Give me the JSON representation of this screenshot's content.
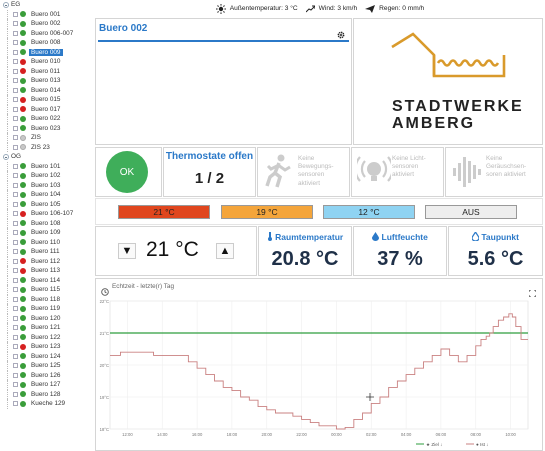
{
  "sidebar": {
    "groups": [
      {
        "label": "EG",
        "items": [
          {
            "label": "Buero 001",
            "status": "green"
          },
          {
            "label": "Buero 002",
            "status": "green"
          },
          {
            "label": "Buero 006-007",
            "status": "green"
          },
          {
            "label": "Buero 008",
            "status": "green"
          },
          {
            "label": "Buero 009",
            "status": "green",
            "selected": true
          },
          {
            "label": "Buero 010",
            "status": "red"
          },
          {
            "label": "Buero 011",
            "status": "red"
          },
          {
            "label": "Buero 013",
            "status": "green"
          },
          {
            "label": "Buero 014",
            "status": "green"
          },
          {
            "label": "Buero 015",
            "status": "red"
          },
          {
            "label": "Buero 017",
            "status": "red"
          },
          {
            "label": "Buero 022",
            "status": "green"
          },
          {
            "label": "Buero 023",
            "status": "green"
          },
          {
            "label": "ZIS",
            "status": "gray"
          },
          {
            "label": "ZIS 23",
            "status": "gray"
          }
        ]
      },
      {
        "label": "OG",
        "items": [
          {
            "label": "Buero 101",
            "status": "green"
          },
          {
            "label": "Buero 102",
            "status": "green"
          },
          {
            "label": "Buero 103",
            "status": "green"
          },
          {
            "label": "Buero 104",
            "status": "green"
          },
          {
            "label": "Buero 105",
            "status": "green"
          },
          {
            "label": "Buero 106-107",
            "status": "red"
          },
          {
            "label": "Buero 108",
            "status": "green"
          },
          {
            "label": "Buero 109",
            "status": "green"
          },
          {
            "label": "Buero 110",
            "status": "green"
          },
          {
            "label": "Buero 111",
            "status": "green"
          },
          {
            "label": "Buero 112",
            "status": "red"
          },
          {
            "label": "Buero 113",
            "status": "red"
          },
          {
            "label": "Buero 114",
            "status": "green"
          },
          {
            "label": "Buero 115",
            "status": "green"
          },
          {
            "label": "Buero 118",
            "status": "green"
          },
          {
            "label": "Buero 119",
            "status": "green"
          },
          {
            "label": "Buero 120",
            "status": "green"
          },
          {
            "label": "Buero 121",
            "status": "green"
          },
          {
            "label": "Buero 122",
            "status": "green"
          },
          {
            "label": "Buero 123",
            "status": "red"
          },
          {
            "label": "Buero 124",
            "status": "green"
          },
          {
            "label": "Buero 125",
            "status": "green"
          },
          {
            "label": "Buero 126",
            "status": "green"
          },
          {
            "label": "Buero 127",
            "status": "green"
          },
          {
            "label": "Buero 128",
            "status": "green"
          },
          {
            "label": "Kueche 129",
            "status": "green"
          }
        ]
      }
    ]
  },
  "topbar": {
    "outside_temp": "Außentemperatur: 3 °C",
    "wind": "Wind: 3 km/h",
    "rain": "Regen: 0 mm/h"
  },
  "room": {
    "title": "Buero 002"
  },
  "logo": {
    "line1": "STADTWERKE",
    "line2": "AMBERG"
  },
  "status": {
    "ok_label": "OK",
    "thermo_title": "Thermostate offen",
    "thermo_value": "1 / 2",
    "sensors": [
      {
        "caption_lines": [
          "Keine",
          "Bewegungs-",
          "sensoren",
          "aktiviert"
        ],
        "icon": "motion-icon"
      },
      {
        "caption_lines": [
          "Keine Licht-",
          "sensoren",
          "aktiviert"
        ],
        "icon": "light-sensor-icon"
      },
      {
        "caption_lines": [
          "Keine",
          "Geräuschsen-",
          "soren aktiviert"
        ],
        "icon": "sound-sensor-icon"
      }
    ]
  },
  "temp_buttons": [
    {
      "label": "21 °C",
      "color": "#e0461e"
    },
    {
      "label": "19 °C",
      "color": "#f4a53b"
    },
    {
      "label": "12 °C",
      "color": "#8fd3f2"
    },
    {
      "label": "AUS",
      "color": "#eeeeee"
    }
  ],
  "setpoint": {
    "value": "21 °C",
    "down": "▼",
    "up": "▲"
  },
  "readings": {
    "room_temp": {
      "label": "Raumtemperatur",
      "value": "20.8 °C"
    },
    "humidity": {
      "label": "Luftfeuchte",
      "value": "37 %"
    },
    "dewpoint": {
      "label": "Taupunkt",
      "value": "5.6 °C"
    }
  },
  "chart_data": {
    "type": "line",
    "title": "Echtzeit - letzte(r) Tag",
    "ylim": [
      18,
      22
    ],
    "yticks": [
      "22°C",
      "21°C",
      "20°C",
      "19°C",
      "18°C"
    ],
    "xticks": [
      "12:00",
      "14:00",
      "16:00",
      "18:00",
      "20:00",
      "22:00",
      "00:00",
      "02:00",
      "04:00",
      "06:00",
      "08:00",
      "10:00"
    ],
    "grid": true,
    "legend_position": "bottom-right",
    "legend": [
      "★ Ziel ↓",
      "● Ist ↓"
    ],
    "series": [
      {
        "name": "★ Ziel ↓",
        "color": "#2e9e3e",
        "x": [
          0,
          24
        ],
        "values": [
          21,
          21
        ]
      },
      {
        "name": "● Ist ↓",
        "color": "#c98080",
        "x": [
          0,
          0.6,
          1.5,
          2.5,
          3.5,
          4.5,
          5.0,
          5.5,
          6.0,
          6.5,
          7.0,
          7.5,
          8.0,
          8.5,
          9.0,
          9.5,
          10.0,
          10.5,
          11.0,
          11.5,
          12.0,
          12.5,
          13.0,
          13.5,
          14.0,
          14.5,
          15.0,
          15.5,
          16.0,
          16.5,
          17.0,
          17.5,
          18.0,
          18.5,
          19.0,
          19.5,
          20.0,
          20.5,
          21.0,
          21.3,
          21.6,
          21.8,
          22.0,
          22.3,
          22.6,
          22.9,
          23.1,
          23.3,
          23.6,
          24.0
        ],
        "values": [
          20.3,
          20.4,
          20.4,
          20.3,
          20.3,
          20.1,
          19.9,
          19.7,
          19.5,
          19.3,
          19.2,
          19.0,
          18.9,
          18.7,
          18.6,
          18.5,
          18.5,
          18.4,
          18.3,
          18.2,
          18.1,
          18.1,
          18.0,
          18.05,
          18.3,
          18.5,
          18.8,
          19.0,
          19.3,
          19.5,
          19.7,
          19.9,
          20.1,
          20.3,
          20.5,
          20.3,
          20.1,
          20.3,
          20.6,
          20.8,
          20.9,
          21.0,
          21.2,
          21.4,
          21.5,
          21.6,
          21.5,
          21.2,
          20.8,
          20.8
        ]
      }
    ]
  }
}
